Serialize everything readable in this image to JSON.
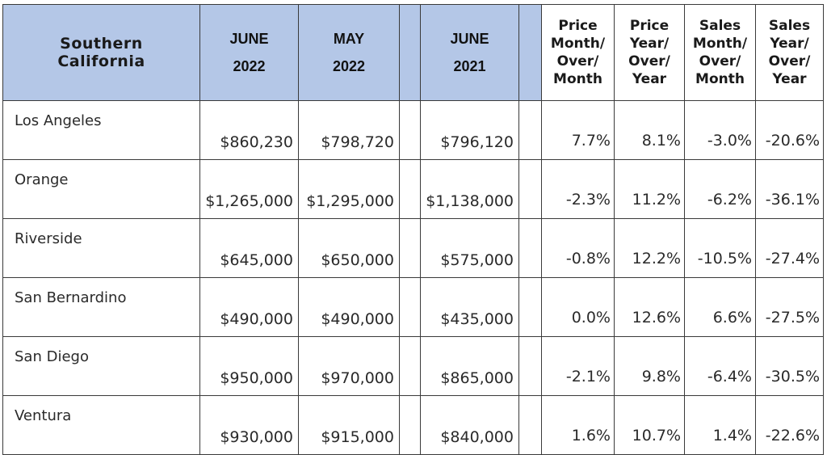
{
  "header": {
    "region": [
      "Southern",
      "California"
    ],
    "col_june_2022": [
      "JUNE",
      "2022"
    ],
    "col_may_2022": [
      "MAY",
      "2022"
    ],
    "col_june_2021": [
      "JUNE",
      "2021"
    ],
    "col_price_mom": [
      "Price",
      "Month/",
      "Over/",
      "Month"
    ],
    "col_price_yoy": [
      "Price",
      "Year/",
      "Over/",
      "Year"
    ],
    "col_sales_mom": [
      "Sales",
      "Month/",
      "Over/",
      "Month"
    ],
    "col_sales_yoy": [
      "Sales",
      "Year/",
      "Over/",
      "Year"
    ]
  },
  "rows": [
    {
      "county": "Los Angeles",
      "june_2022": "$860,230",
      "may_2022": "$798,720",
      "june_2021": "$796,120",
      "price_mom": "7.7%",
      "price_yoy": "8.1%",
      "sales_mom": "-3.0%",
      "sales_yoy": "-20.6%"
    },
    {
      "county": "Orange",
      "june_2022": "$1,265,000",
      "may_2022": "$1,295,000",
      "june_2021": "$1,138,000",
      "price_mom": "-2.3%",
      "price_yoy": "11.2%",
      "sales_mom": "-6.2%",
      "sales_yoy": "-36.1%"
    },
    {
      "county": "Riverside",
      "june_2022": "$645,000",
      "may_2022": "$650,000",
      "june_2021": "$575,000",
      "price_mom": "-0.8%",
      "price_yoy": "12.2%",
      "sales_mom": "-10.5%",
      "sales_yoy": "-27.4%"
    },
    {
      "county": "San Bernardino",
      "june_2022": "$490,000",
      "may_2022": "$490,000",
      "june_2021": "$435,000",
      "price_mom": "0.0%",
      "price_yoy": "12.6%",
      "sales_mom": "6.6%",
      "sales_yoy": "-27.5%"
    },
    {
      "county": "San Diego",
      "june_2022": "$950,000",
      "may_2022": "$970,000",
      "june_2021": "$865,000",
      "price_mom": "-2.1%",
      "price_yoy": "9.8%",
      "sales_mom": "-6.4%",
      "sales_yoy": "-30.5%"
    },
    {
      "county": "Ventura",
      "june_2022": "$930,000",
      "may_2022": "$915,000",
      "june_2021": "$840,000",
      "price_mom": "1.6%",
      "price_yoy": "10.7%",
      "sales_mom": "1.4%",
      "sales_yoy": "-22.6%"
    }
  ],
  "colors": {
    "header_fill": "#b4c7e7",
    "border": "#3a3a3a",
    "text": "#2a2a2a"
  }
}
